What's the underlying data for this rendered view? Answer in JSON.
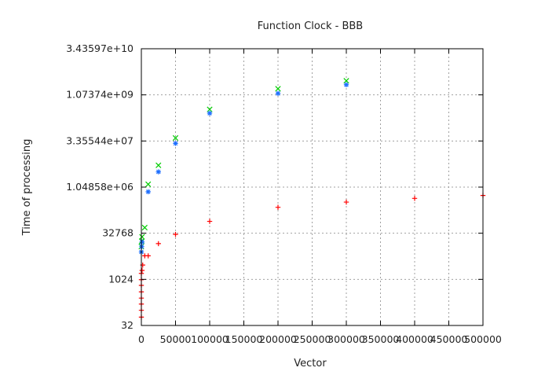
{
  "chart_data": {
    "type": "scatter",
    "title": "Function Clock - BBB",
    "xlabel": "Vector",
    "ylabel": "Time of processing",
    "xlim": [
      0,
      500000
    ],
    "ylim": [
      32,
      34359738368
    ],
    "y_scale": "log2",
    "grid": true,
    "x_ticks": [
      0,
      50000,
      100000,
      150000,
      200000,
      250000,
      300000,
      350000,
      400000,
      450000,
      500000
    ],
    "x_tick_labels": [
      "0",
      "50000",
      "100000",
      "150000",
      "200000",
      "250000",
      "300000",
      "350000",
      "400000",
      "450000",
      "500000"
    ],
    "y_ticks": [
      32,
      1024,
      32768,
      1048576,
      33554432,
      1073741824,
      34359738368
    ],
    "y_tick_labels": [
      "32",
      "1024",
      "32768",
      "1.04858e+06",
      "3.35544e+07",
      "1.07374e+09",
      "3.43597e+10"
    ],
    "series": [
      {
        "color": "#ff0000",
        "marker": "plus",
        "points": [
          [
            0,
            60
          ],
          [
            0,
            100
          ],
          [
            0,
            160
          ],
          [
            0,
            250
          ],
          [
            0,
            400
          ],
          [
            0,
            650
          ],
          [
            0,
            1000
          ],
          [
            0,
            1600
          ],
          [
            1000,
            2000
          ],
          [
            2000,
            3000
          ],
          [
            5000,
            6000
          ],
          [
            10000,
            6000
          ],
          [
            25000,
            15000
          ],
          [
            50000,
            30000
          ],
          [
            100000,
            80000
          ],
          [
            200000,
            230000
          ],
          [
            300000,
            340000
          ],
          [
            400000,
            450000
          ],
          [
            500000,
            560000
          ]
        ]
      },
      {
        "color": "#00cc00",
        "marker": "x",
        "points": [
          [
            0,
            12000
          ],
          [
            500,
            18000
          ],
          [
            1000,
            25000
          ],
          [
            5000,
            50000
          ],
          [
            10000,
            1300000
          ],
          [
            25000,
            5400000
          ],
          [
            50000,
            42000000
          ],
          [
            100000,
            360000000
          ],
          [
            200000,
            1700000000
          ],
          [
            300000,
            3100000000
          ]
        ]
      },
      {
        "color": "#1e6fff",
        "marker": "star",
        "points": [
          [
            0,
            8000
          ],
          [
            500,
            12000
          ],
          [
            1000,
            17000
          ],
          [
            10000,
            740000
          ],
          [
            25000,
            3300000
          ],
          [
            50000,
            28000000
          ],
          [
            100000,
            270000000
          ],
          [
            200000,
            1200000000
          ],
          [
            300000,
            2300000000
          ]
        ]
      }
    ]
  }
}
